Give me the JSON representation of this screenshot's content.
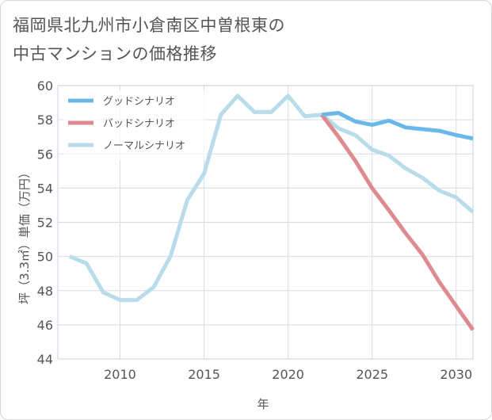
{
  "title_lines": [
    "福岡県北九州市小倉南区中曽根東の",
    "中古マンションの価格推移"
  ],
  "chart_data": {
    "type": "line",
    "title": "福岡県北九州市小倉南区中曽根東の中古マンションの価格推移",
    "xlabel": "年",
    "ylabel": "坪（3.3㎡）単価（万円）",
    "xlim": [
      2006.3,
      2031
    ],
    "ylim": [
      44,
      60
    ],
    "xticks": [
      2010,
      2015,
      2020,
      2025,
      2030
    ],
    "yticks": [
      44,
      46,
      48,
      50,
      52,
      54,
      56,
      58,
      60
    ],
    "grid": true,
    "legend_position": "top-left",
    "series": [
      {
        "name": "グッドシナリオ",
        "color": "#6ab8ea",
        "x": [
          2022,
          2023,
          2024,
          2025,
          2026,
          2027,
          2028,
          2029,
          2030,
          2031
        ],
        "y": [
          58.3,
          58.4,
          57.9,
          57.7,
          57.95,
          57.55,
          57.45,
          57.35,
          57.1,
          56.9
        ]
      },
      {
        "name": "バッドシナリオ",
        "color": "#dd8a90",
        "x": [
          2022,
          2023,
          2024,
          2025,
          2026,
          2027,
          2028,
          2029,
          2030,
          2031
        ],
        "y": [
          58.3,
          57.0,
          55.6,
          54.0,
          52.7,
          51.35,
          50.1,
          48.5,
          47.1,
          45.7
        ]
      },
      {
        "name": "ノーマルシナリオ",
        "color": "#b9dcea",
        "x": [
          2007,
          2008,
          2009,
          2010,
          2011,
          2012,
          2013,
          2014,
          2015,
          2016,
          2017,
          2018,
          2019,
          2020,
          2021,
          2022,
          2023,
          2024,
          2025,
          2026,
          2027,
          2028,
          2029,
          2030,
          2031
        ],
        "y": [
          50.0,
          49.6,
          47.9,
          47.45,
          47.45,
          48.2,
          50.0,
          53.3,
          54.85,
          58.3,
          59.4,
          58.45,
          58.45,
          59.4,
          58.2,
          58.3,
          57.5,
          57.1,
          56.25,
          55.9,
          55.15,
          54.6,
          53.85,
          53.45,
          52.6
        ]
      }
    ]
  }
}
